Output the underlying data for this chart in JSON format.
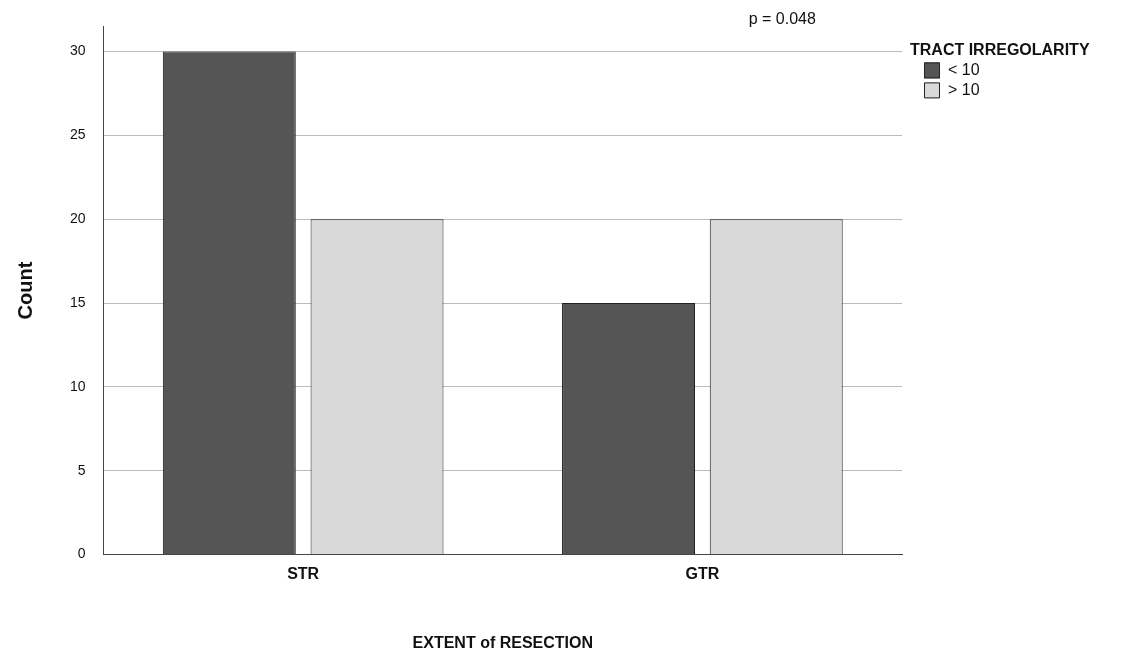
{
  "chart_data": {
    "type": "bar",
    "xlabel": "EXTENT of RESECTION",
    "ylabel": "Count",
    "legend_title": "TRACT IRREGOLARITY",
    "categories": [
      "STR",
      "GTR"
    ],
    "series": [
      {
        "name": "< 10",
        "color": "#555555",
        "values": [
          30,
          15
        ]
      },
      {
        "name": "> 10",
        "color": "#d9d9d9",
        "values": [
          20,
          20
        ]
      }
    ],
    "ylim": [
      0,
      31.5
    ],
    "yticks": [
      0,
      5,
      10,
      15,
      20,
      25,
      30
    ],
    "grid": "y",
    "legend": "top right",
    "annotations": [
      "p = 0.048"
    ]
  }
}
